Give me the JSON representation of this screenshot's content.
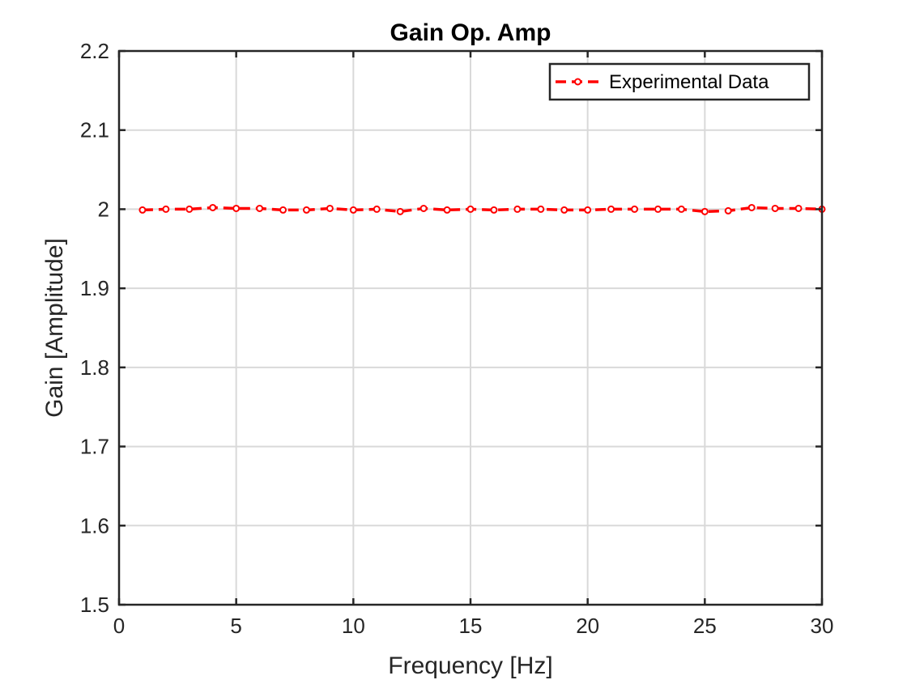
{
  "chart_data": {
    "type": "line",
    "title": "Gain Op. Amp",
    "xlabel": "Frequency [Hz]",
    "ylabel": "Gain [Amplitude]",
    "xlim": [
      0,
      30
    ],
    "ylim": [
      1.5,
      2.2
    ],
    "xticks": [
      "0",
      "5",
      "10",
      "15",
      "20",
      "25",
      "30"
    ],
    "yticks": [
      "1.5",
      "1.6",
      "1.7",
      "1.8",
      "1.9",
      "2",
      "2.1",
      "2.2"
    ],
    "grid": true,
    "legend_position": "top-right",
    "series": [
      {
        "name": "Experimental Data",
        "color": "#ff0000",
        "line_style": "dashed",
        "marker": "circle",
        "x": [
          1,
          2,
          3,
          4,
          5,
          6,
          7,
          8,
          9,
          10,
          11,
          12,
          13,
          14,
          15,
          16,
          17,
          18,
          19,
          20,
          21,
          22,
          23,
          24,
          25,
          26,
          27,
          28,
          29,
          30
        ],
        "y": [
          1.999,
          2.0,
          2.0,
          2.002,
          2.001,
          2.001,
          1.999,
          1.999,
          2.001,
          1.999,
          2.0,
          1.997,
          2.001,
          1.999,
          2.0,
          1.999,
          2.0,
          2.0,
          1.999,
          1.999,
          2.0,
          2.0,
          2.0,
          2.0,
          1.997,
          1.998,
          2.002,
          2.001,
          2.001,
          2.0
        ]
      }
    ]
  }
}
